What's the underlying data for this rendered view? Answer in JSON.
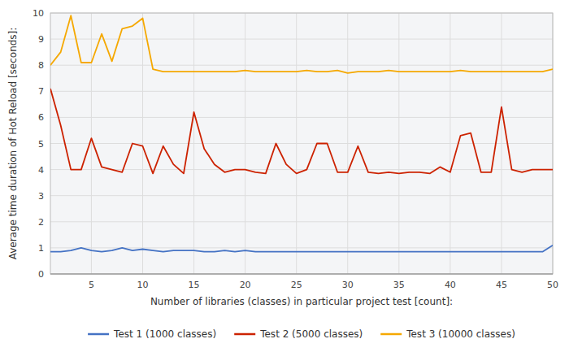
{
  "chart_data": {
    "type": "line",
    "xlabel": "Number of libraries (classes) in particular project test [count]:",
    "ylabel": "Average time duration of Hot Reload [seconds]:",
    "x": [
      1,
      2,
      3,
      4,
      5,
      6,
      7,
      8,
      9,
      10,
      11,
      12,
      13,
      14,
      15,
      16,
      17,
      18,
      19,
      20,
      21,
      22,
      23,
      24,
      25,
      26,
      27,
      28,
      29,
      30,
      31,
      32,
      33,
      34,
      35,
      36,
      37,
      38,
      39,
      40,
      41,
      42,
      43,
      44,
      45,
      46,
      47,
      48,
      49,
      50
    ],
    "series": [
      {
        "name": "Test 1 (1000 classes)",
        "color": "#4472c4",
        "values": [
          0.85,
          0.85,
          0.9,
          1.0,
          0.9,
          0.85,
          0.9,
          1.0,
          0.9,
          0.95,
          0.9,
          0.85,
          0.9,
          0.9,
          0.9,
          0.85,
          0.85,
          0.9,
          0.85,
          0.9,
          0.85,
          0.85,
          0.85,
          0.85,
          0.85,
          0.85,
          0.85,
          0.85,
          0.85,
          0.85,
          0.85,
          0.85,
          0.85,
          0.85,
          0.85,
          0.85,
          0.85,
          0.85,
          0.85,
          0.85,
          0.85,
          0.85,
          0.85,
          0.85,
          0.85,
          0.85,
          0.85,
          0.85,
          0.85,
          1.1
        ]
      },
      {
        "name": "Test 2 (5000 classes)",
        "color": "#cc2200",
        "values": [
          7.1,
          5.7,
          4.0,
          4.0,
          5.2,
          4.1,
          4.0,
          3.9,
          5.0,
          4.9,
          3.85,
          4.9,
          4.2,
          3.85,
          6.2,
          4.8,
          4.2,
          3.9,
          4.0,
          4.0,
          3.9,
          3.85,
          5.0,
          4.2,
          3.85,
          4.0,
          5.0,
          5.0,
          3.9,
          3.9,
          4.9,
          3.9,
          3.85,
          3.9,
          3.85,
          3.9,
          3.9,
          3.85,
          4.1,
          3.9,
          5.3,
          5.4,
          3.9,
          3.9,
          6.4,
          4.0,
          3.9,
          4.0,
          4.0,
          4.0
        ]
      },
      {
        "name": "Test 3 (10000 classes)",
        "color": "#f5a800",
        "values": [
          8.0,
          8.5,
          9.9,
          8.1,
          8.1,
          9.2,
          8.15,
          9.4,
          9.5,
          9.8,
          7.85,
          7.75,
          7.75,
          7.75,
          7.75,
          7.75,
          7.75,
          7.75,
          7.75,
          7.8,
          7.75,
          7.75,
          7.75,
          7.75,
          7.75,
          7.8,
          7.75,
          7.75,
          7.8,
          7.7,
          7.75,
          7.75,
          7.75,
          7.8,
          7.75,
          7.75,
          7.75,
          7.75,
          7.75,
          7.75,
          7.8,
          7.75,
          7.75,
          7.75,
          7.75,
          7.75,
          7.75,
          7.75,
          7.75,
          7.85
        ]
      }
    ],
    "xlim": [
      1,
      50
    ],
    "ylim": [
      0,
      10
    ],
    "xticks": [
      5,
      10,
      15,
      20,
      25,
      30,
      35,
      40,
      45,
      50
    ],
    "yticks": [
      0,
      1,
      2,
      3,
      4,
      5,
      6,
      7,
      8,
      9,
      10
    ],
    "grid": true,
    "legend": "bottom"
  }
}
